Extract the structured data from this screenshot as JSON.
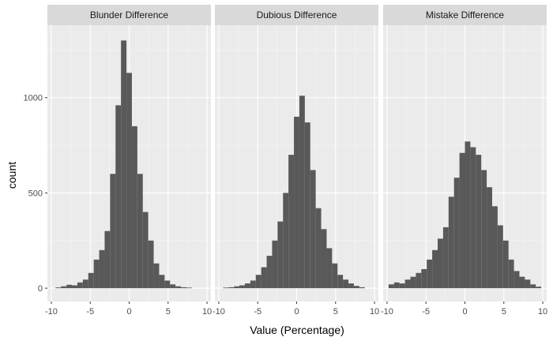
{
  "chart_data": {
    "type": "bar",
    "subtype": "faceted-histogram",
    "xlabel": "Value (Percentage)",
    "ylabel": "count",
    "xlim": [
      -10.5,
      10.5
    ],
    "ylim": [
      -70,
      1380
    ],
    "x_ticks": [
      -10,
      -5,
      0,
      5,
      10
    ],
    "x_tick_labels": [
      "-10",
      "-5",
      "0",
      "5",
      "10"
    ],
    "y_ticks": [
      0,
      500,
      1000
    ],
    "y_tick_labels": [
      "0",
      "500",
      "1000"
    ],
    "bin_width": 0.7,
    "colors": {
      "bar": "#595959",
      "panel_bg": "#ebebeb",
      "strip_bg": "#d9d9d9",
      "grid_major": "#ffffff"
    },
    "panels": [
      {
        "title": "Blunder Difference",
        "bin_centers": [
          -9.1,
          -8.4,
          -7.7,
          -7.0,
          -6.3,
          -5.6,
          -4.9,
          -4.2,
          -3.5,
          -2.8,
          -2.1,
          -1.4,
          -0.7,
          0.0,
          0.7,
          1.4,
          2.1,
          2.8,
          3.5,
          4.2,
          4.9,
          5.6,
          6.3,
          7.0,
          7.7
        ],
        "counts": [
          4,
          10,
          18,
          15,
          30,
          45,
          80,
          150,
          200,
          300,
          600,
          960,
          1300,
          1130,
          850,
          600,
          400,
          250,
          130,
          70,
          40,
          20,
          10,
          5,
          3
        ]
      },
      {
        "title": "Dubious Difference",
        "bin_centers": [
          -9.1,
          -8.4,
          -7.7,
          -7.0,
          -6.3,
          -5.6,
          -4.9,
          -4.2,
          -3.5,
          -2.8,
          -2.1,
          -1.4,
          -0.7,
          0.0,
          0.7,
          1.4,
          2.1,
          2.8,
          3.5,
          4.2,
          4.9,
          5.6,
          6.3,
          7.0,
          7.7,
          8.4
        ],
        "counts": [
          3,
          5,
          10,
          15,
          25,
          40,
          70,
          110,
          170,
          250,
          350,
          500,
          700,
          900,
          1010,
          870,
          620,
          420,
          310,
          210,
          130,
          70,
          45,
          25,
          12,
          5
        ]
      },
      {
        "title": "Mistake Difference",
        "bin_centers": [
          -9.45,
          -8.75,
          -8.05,
          -7.35,
          -6.65,
          -5.95,
          -5.25,
          -4.55,
          -3.85,
          -3.15,
          -2.45,
          -1.75,
          -1.05,
          -0.35,
          0.35,
          1.05,
          1.75,
          2.45,
          3.15,
          3.85,
          4.55,
          5.25,
          5.95,
          6.65,
          7.35,
          8.05,
          8.75,
          9.45
        ],
        "counts": [
          20,
          30,
          25,
          45,
          60,
          80,
          100,
          150,
          200,
          260,
          320,
          480,
          580,
          710,
          770,
          740,
          700,
          620,
          530,
          430,
          330,
          250,
          150,
          90,
          60,
          45,
          20,
          8
        ]
      }
    ]
  }
}
